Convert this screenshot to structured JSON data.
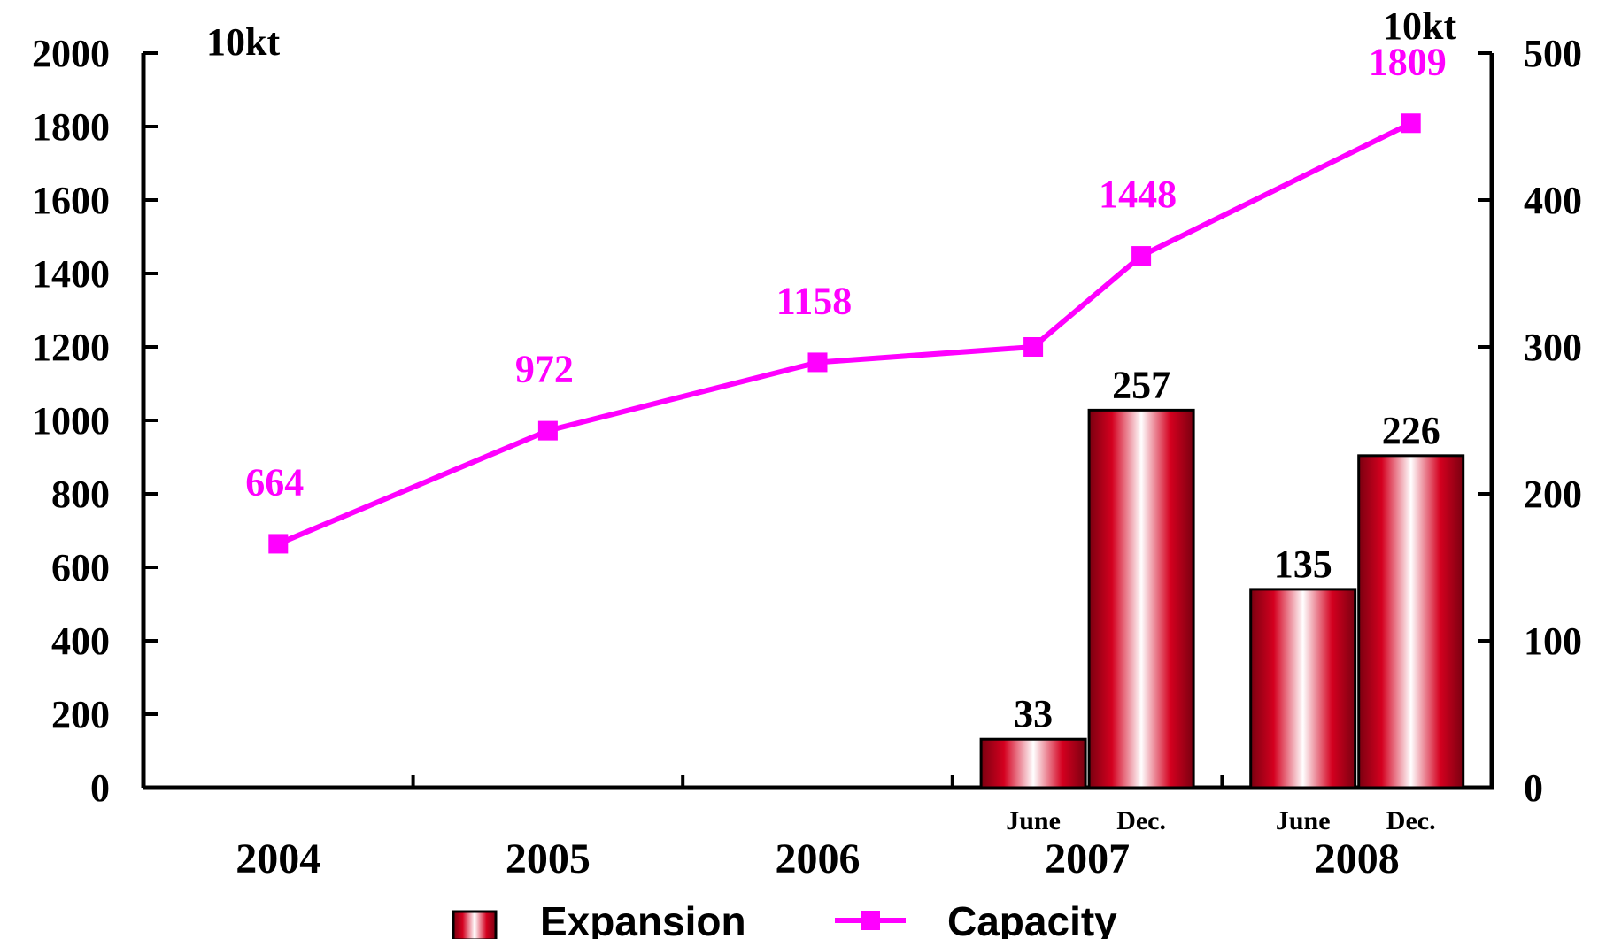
{
  "chart_data": {
    "type": "bar",
    "left_axis": {
      "unit": "10kt",
      "ylim": [
        0,
        2000
      ],
      "ticks": [
        "2000",
        "1800",
        "1600",
        "1400",
        "1200",
        "1000",
        "800",
        "600",
        "400",
        "200",
        "0"
      ]
    },
    "right_axis": {
      "unit": "10kt",
      "ylim": [
        0,
        500
      ],
      "ticks": [
        "500",
        "400",
        "300",
        "200",
        "100",
        "0"
      ]
    },
    "categories": [
      "2004",
      "2005",
      "2006",
      "2007",
      "2008"
    ],
    "sub_categories": [
      "June",
      "Dec."
    ],
    "series": [
      {
        "name": "Expansion",
        "type": "bar",
        "axis": "right",
        "color": "#c8001e",
        "points": [
          {
            "category": "2007",
            "sub": "June",
            "value": 33,
            "label": "33"
          },
          {
            "category": "2007",
            "sub": "Dec.",
            "value": 257,
            "label": "257"
          },
          {
            "category": "2008",
            "sub": "June",
            "value": 135,
            "label": "135"
          },
          {
            "category": "2008",
            "sub": "Dec.",
            "value": 226,
            "label": "226"
          }
        ]
      },
      {
        "name": "Capacity",
        "type": "line",
        "axis": "left",
        "color": "#ff00ff",
        "points": [
          {
            "category": "2004",
            "value": 664,
            "label": "664"
          },
          {
            "category": "2005",
            "value": 972,
            "label": "972"
          },
          {
            "category": "2006",
            "value": 1158,
            "label": "1158"
          },
          {
            "category": "2007",
            "sub": "June",
            "value": 1200,
            "label": ""
          },
          {
            "category": "2007",
            "sub": "Dec.",
            "value": 1448,
            "label": "1448"
          },
          {
            "category": "2008",
            "sub": "Dec.",
            "value": 1809,
            "label": "1809"
          }
        ]
      }
    ],
    "legend": {
      "position": "bottom",
      "items": [
        "Expansion",
        "Capacity"
      ]
    },
    "grid": false
  }
}
